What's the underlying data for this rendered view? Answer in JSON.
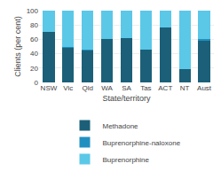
{
  "chart_data": {
    "type": "bar",
    "stacked": true,
    "categories": [
      "NSW",
      "Vic",
      "Qld",
      "WA",
      "SA",
      "Tas",
      "ACT",
      "NT",
      "Aust"
    ],
    "series": [
      {
        "name": "Methadone",
        "color": "#1b6078",
        "values": [
          70,
          49,
          45,
          61,
          62,
          46,
          77,
          19,
          59
        ]
      },
      {
        "name": "Buprenorphine-naloxone",
        "color": "#2190c0",
        "values": [
          0,
          1,
          1,
          0,
          0,
          0,
          0,
          0,
          1
        ]
      },
      {
        "name": "Buprenorphine",
        "color": "#5bc8e8",
        "values": [
          30,
          50,
          54,
          39,
          38,
          54,
          23,
          81,
          40
        ]
      }
    ],
    "xlabel": "State/territory",
    "ylabel": "Clients (per cent)",
    "ylim": [
      0,
      100
    ],
    "yticks": [
      0,
      20,
      40,
      60,
      80,
      100
    ],
    "grid": true,
    "legend": "bottom"
  }
}
